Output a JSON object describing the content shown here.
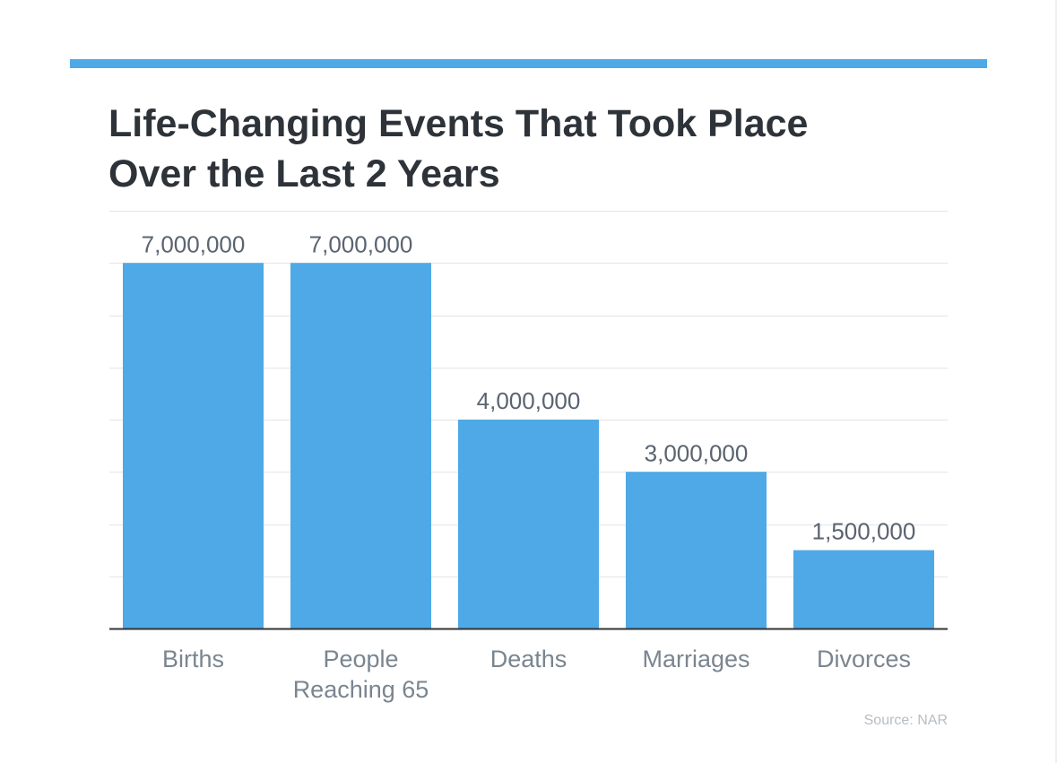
{
  "title_lines": [
    "Life-Changing Events That Took Place",
    "Over the Last 2 Years"
  ],
  "source": "Source: NAR",
  "colors": {
    "accent": "#4ea9e6",
    "bar": "#4ea9e6",
    "title": "#2d3339",
    "value_label": "#5a6470",
    "category_label": "#7a8590",
    "grid": "#e3e5e8",
    "axis": "#333333"
  },
  "chart_data": {
    "type": "bar",
    "title": "Life-Changing Events That Took Place Over the Last 2 Years",
    "categories": [
      "Births",
      "People Reaching 65",
      "Deaths",
      "Marriages",
      "Divorces"
    ],
    "category_lines": [
      [
        "Births"
      ],
      [
        "People",
        "Reaching 65"
      ],
      [
        "Deaths"
      ],
      [
        "Marriages"
      ],
      [
        "Divorces"
      ]
    ],
    "values": [
      7000000,
      7000000,
      4000000,
      3000000,
      1500000
    ],
    "value_labels": [
      "7,000,000",
      "7,000,000",
      "4,000,000",
      "3,000,000",
      "1,500,000"
    ],
    "xlabel": "",
    "ylabel": "",
    "ylim": [
      0,
      8000000
    ],
    "grid": true,
    "gridlines": [
      1000000,
      2000000,
      3000000,
      4000000,
      5000000,
      6000000,
      7000000,
      8000000
    ]
  }
}
